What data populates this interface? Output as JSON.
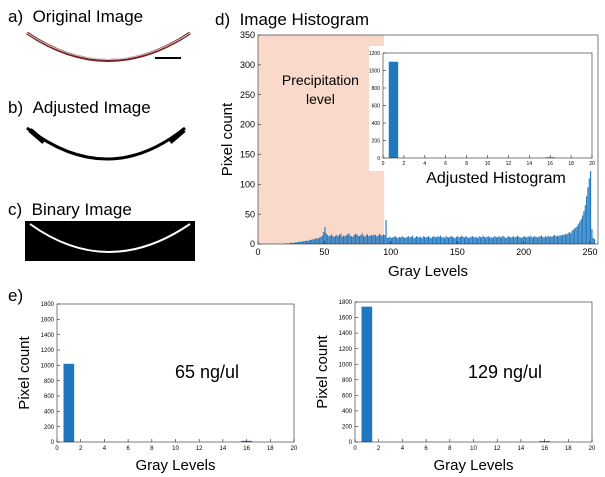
{
  "panels": {
    "a": "a)",
    "a_title": "Original Image",
    "b": "b)",
    "b_title": "Adjusted Image",
    "c": "c)",
    "c_title": "Binary Image",
    "d": "d)",
    "d_title": "Image Histogram",
    "e": "e)"
  },
  "colors": {
    "bar": "#1f77c0",
    "precip": "#f9d9c9",
    "arc_red": "#8b1a1a"
  },
  "chart_data": [
    {
      "id": "image-histogram",
      "type": "bar",
      "title": "Image Histogram",
      "xlabel": "Gray Levels",
      "ylabel": "Pixel count",
      "xlim": [
        0,
        256
      ],
      "ylim": [
        0,
        350
      ],
      "xticks": [
        "0",
        "50",
        "100",
        "150",
        "200",
        "250"
      ],
      "yticks": [
        "0",
        "50",
        "100",
        "150",
        "200",
        "250",
        "300",
        "350"
      ],
      "region": {
        "label_line1": "Precipitation",
        "label_line2": "level",
        "x_range": [
          0,
          95
        ]
      },
      "values": [
        0,
        0,
        0,
        0,
        0,
        0,
        0,
        0,
        0,
        0,
        0,
        0,
        0,
        0,
        0,
        0,
        0,
        0,
        0,
        0,
        1,
        1,
        1,
        1,
        2,
        2,
        2,
        2,
        3,
        3,
        3,
        4,
        4,
        4,
        5,
        5,
        6,
        5,
        6,
        7,
        7,
        8,
        8,
        9,
        10,
        9,
        11,
        12,
        14,
        20,
        28,
        18,
        15,
        13,
        14,
        16,
        13,
        12,
        14,
        15,
        13,
        16,
        17,
        12,
        14,
        13,
        15,
        16,
        18,
        14,
        13,
        12,
        15,
        17,
        16,
        14,
        13,
        15,
        18,
        14,
        12,
        15,
        16,
        13,
        14,
        15,
        14,
        16,
        15,
        13,
        14,
        17,
        15,
        14,
        16,
        15,
        40,
        10,
        11,
        12,
        10,
        11,
        12,
        13,
        11,
        10,
        12,
        11,
        13,
        12,
        10,
        11,
        12,
        13,
        11,
        12,
        14,
        10,
        11,
        13,
        12,
        11,
        12,
        10,
        13,
        12,
        11,
        12,
        13,
        11,
        10,
        12,
        13,
        12,
        11,
        13,
        12,
        14,
        11,
        12,
        10,
        13,
        12,
        11,
        12,
        13,
        12,
        11,
        10,
        12,
        13,
        11,
        12,
        14,
        12,
        11,
        13,
        12,
        10,
        11,
        12,
        13,
        12,
        11,
        12,
        10,
        13,
        12,
        11,
        14,
        12,
        11,
        12,
        13,
        11,
        12,
        10,
        12,
        13,
        12,
        11,
        13,
        12,
        11,
        14,
        12,
        10,
        11,
        13,
        12,
        11,
        12,
        13,
        11,
        12,
        14,
        12,
        11,
        10,
        12,
        13,
        12,
        11,
        13,
        12,
        14,
        11,
        12,
        13,
        12,
        11,
        12,
        13,
        14,
        12,
        11,
        13,
        12,
        14,
        12,
        13,
        12,
        14,
        15,
        13,
        14,
        13,
        15,
        14,
        16,
        15,
        17,
        16,
        18,
        20,
        18,
        22,
        24,
        26,
        28,
        30,
        34,
        38,
        42,
        48,
        55,
        65,
        80,
        95,
        110,
        140,
        25,
        10,
        8
      ]
    },
    {
      "id": "adjusted-histogram",
      "type": "bar",
      "title": "Adjusted Histogram",
      "xlim": [
        0,
        20
      ],
      "ylim": [
        0,
        1200
      ],
      "xticks": [
        "0",
        "2",
        "4",
        "6",
        "8",
        "10",
        "12",
        "14",
        "16",
        "18",
        "20"
      ],
      "yticks": [
        "0",
        "200",
        "400",
        "600",
        "800",
        "1000",
        "1200"
      ],
      "x": [
        1,
        16
      ],
      "values": [
        1100,
        8
      ]
    },
    {
      "id": "histogram-65",
      "type": "bar",
      "annotation": "65 ng/ul",
      "xlabel": "Gray Levels",
      "ylabel": "Pixel count",
      "xlim": [
        0,
        20
      ],
      "ylim": [
        0,
        1800
      ],
      "xticks": [
        "0",
        "2",
        "4",
        "6",
        "8",
        "10",
        "12",
        "14",
        "16",
        "18",
        "20"
      ],
      "yticks": [
        "0",
        "200",
        "400",
        "600",
        "800",
        "1000",
        "1200",
        "1400",
        "1600",
        "1800"
      ],
      "x": [
        1,
        16
      ],
      "values": [
        1020,
        15
      ]
    },
    {
      "id": "histogram-129",
      "type": "bar",
      "annotation": "129 ng/ul",
      "xlabel": "Gray Levels",
      "ylabel": "Pixel count",
      "xlim": [
        0,
        20
      ],
      "ylim": [
        0,
        1800
      ],
      "xticks": [
        "0",
        "2",
        "4",
        "6",
        "8",
        "10",
        "12",
        "14",
        "16",
        "18",
        "20"
      ],
      "yticks": [
        "0",
        "200",
        "400",
        "600",
        "800",
        "1000",
        "1200",
        "1400",
        "1600",
        "1800"
      ],
      "x": [
        1,
        16
      ],
      "values": [
        1740,
        12
      ]
    }
  ]
}
